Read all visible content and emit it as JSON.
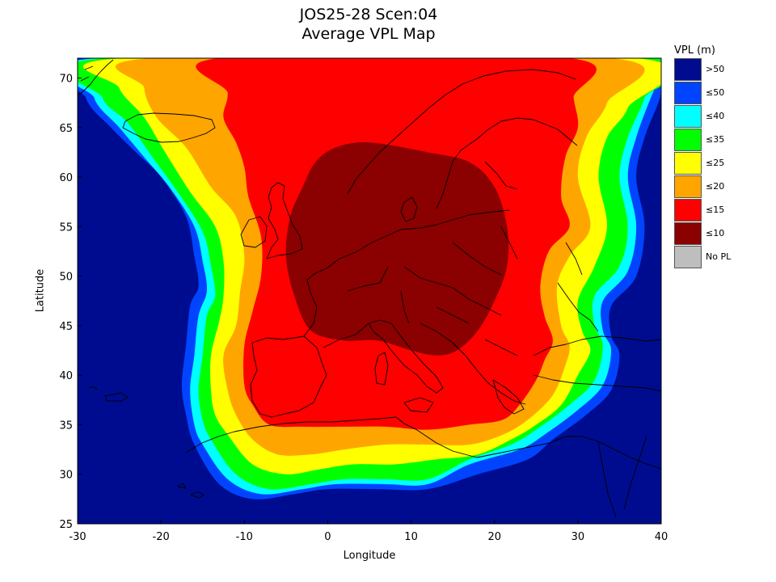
{
  "title_line1": "JOS25-28 Scen:04",
  "title_line2": "Average VPL Map",
  "xlabel": "Longitude",
  "ylabel": "Latitude",
  "x_range": [
    -30,
    40
  ],
  "y_range": [
    25,
    72
  ],
  "x_ticks": [
    -30,
    -20,
    -10,
    0,
    10,
    20,
    30,
    40
  ],
  "y_ticks": [
    25,
    30,
    35,
    40,
    45,
    50,
    55,
    60,
    65,
    70
  ],
  "legend": {
    "title": "VPL (m)",
    "items": [
      {
        "label": ">50",
        "color": "#000c8f"
      },
      {
        "label": "≤50",
        "color": "#0044ff"
      },
      {
        "label": "≤40",
        "color": "#00ffff"
      },
      {
        "label": "≤35",
        "color": "#00ff00"
      },
      {
        "label": "≤25",
        "color": "#ffff00"
      },
      {
        "label": "≤20",
        "color": "#ffa500"
      },
      {
        "label": "≤15",
        "color": "#ff0000"
      },
      {
        "label": "≤10",
        "color": "#8b0000"
      },
      {
        "label": "No PL",
        "color": "#bebebe"
      }
    ]
  },
  "map_layers": [
    {
      "name": "≤50",
      "color": "#0044ff",
      "ring": [
        [
          -28.5,
          72
        ],
        [
          -29,
          68
        ],
        [
          -26,
          65
        ],
        [
          -23,
          62.5
        ],
        [
          -20,
          60
        ],
        [
          -17,
          56
        ],
        [
          -16,
          52
        ],
        [
          -15.5,
          49
        ],
        [
          -16.5,
          47
        ],
        [
          -17,
          43
        ],
        [
          -17.5,
          39
        ],
        [
          -17,
          36
        ],
        [
          -16,
          33
        ],
        [
          -13,
          29
        ],
        [
          -9,
          27.5
        ],
        [
          -4,
          28
        ],
        [
          0,
          28.5
        ],
        [
          6,
          28.5
        ],
        [
          12,
          28.5
        ],
        [
          18,
          30
        ],
        [
          24,
          31.5
        ],
        [
          27,
          33.5
        ],
        [
          31,
          36
        ],
        [
          34,
          38.5
        ],
        [
          35,
          42
        ],
        [
          34,
          44
        ],
        [
          34,
          47
        ],
        [
          37,
          50
        ],
        [
          38,
          55
        ],
        [
          37,
          60
        ],
        [
          38,
          64
        ],
        [
          40,
          68.5
        ],
        [
          40,
          72
        ]
      ]
    },
    {
      "name": "≤40",
      "color": "#00ffff",
      "ring": [
        [
          -27.5,
          72
        ],
        [
          -28,
          68
        ],
        [
          -25,
          65
        ],
        [
          -22,
          62
        ],
        [
          -19,
          59
        ],
        [
          -16,
          55
        ],
        [
          -15,
          51.5
        ],
        [
          -14.5,
          48.5
        ],
        [
          -15.5,
          46
        ],
        [
          -16,
          42
        ],
        [
          -16.5,
          38.5
        ],
        [
          -16,
          35
        ],
        [
          -15,
          33
        ],
        [
          -12,
          29.5
        ],
        [
          -8,
          28
        ],
        [
          -3,
          28.5
        ],
        [
          1,
          29
        ],
        [
          7,
          29
        ],
        [
          12,
          29
        ],
        [
          17,
          31
        ],
        [
          23,
          32.5
        ],
        [
          26,
          34
        ],
        [
          30,
          36.5
        ],
        [
          33,
          39
        ],
        [
          34,
          42.5
        ],
        [
          33,
          44.5
        ],
        [
          33,
          47.5
        ],
        [
          36,
          50.5
        ],
        [
          37,
          55
        ],
        [
          36,
          60
        ],
        [
          37,
          64
        ],
        [
          39,
          68.5
        ],
        [
          40,
          70
        ],
        [
          40,
          72
        ]
      ]
    },
    {
      "name": "≤35",
      "color": "#00ff00",
      "ring": [
        [
          -26.5,
          72
        ],
        [
          -27,
          68
        ],
        [
          -24,
          65.5
        ],
        [
          -21,
          62
        ],
        [
          -18,
          58.5
        ],
        [
          -15,
          54.5
        ],
        [
          -14,
          51
        ],
        [
          -13.5,
          48
        ],
        [
          -14.5,
          46
        ],
        [
          -15,
          42
        ],
        [
          -15.5,
          38.5
        ],
        [
          -15,
          35.5
        ],
        [
          -14,
          33.5
        ],
        [
          -11,
          30
        ],
        [
          -7,
          28.5
        ],
        [
          -2,
          29
        ],
        [
          2,
          29.5
        ],
        [
          7,
          29.5
        ],
        [
          12,
          29.5
        ],
        [
          17,
          31.5
        ],
        [
          22,
          33
        ],
        [
          25,
          34.5
        ],
        [
          29,
          37
        ],
        [
          32,
          39.5
        ],
        [
          33,
          43
        ],
        [
          32,
          45
        ],
        [
          32,
          48
        ],
        [
          35,
          51
        ],
        [
          36,
          55
        ],
        [
          35,
          60
        ],
        [
          36,
          64
        ],
        [
          38,
          68
        ],
        [
          39,
          72
        ]
      ]
    },
    {
      "name": "≤25",
      "color": "#ffff00",
      "ring": [
        [
          -24.5,
          72
        ],
        [
          -25,
          69
        ],
        [
          -22,
          66
        ],
        [
          -19.5,
          62.5
        ],
        [
          -16.5,
          58.5
        ],
        [
          -13.5,
          55
        ],
        [
          -12.5,
          51.5
        ],
        [
          -12.5,
          48
        ],
        [
          -13,
          45.5
        ],
        [
          -14,
          42
        ],
        [
          -14,
          38.5
        ],
        [
          -13.5,
          36
        ],
        [
          -12,
          34
        ],
        [
          -9,
          31
        ],
        [
          -5,
          30
        ],
        [
          -1,
          30.5
        ],
        [
          3,
          31
        ],
        [
          8,
          31
        ],
        [
          13,
          31.5
        ],
        [
          18,
          32
        ],
        [
          22,
          33.5
        ],
        [
          25,
          35
        ],
        [
          28,
          37
        ],
        [
          30,
          40
        ],
        [
          31.5,
          42.5
        ],
        [
          30.5,
          44.5
        ],
        [
          30,
          47.5
        ],
        [
          32,
          51
        ],
        [
          33.5,
          55
        ],
        [
          32.5,
          60
        ],
        [
          33.5,
          64
        ],
        [
          36,
          67
        ],
        [
          37,
          72
        ]
      ]
    },
    {
      "name": "≤20",
      "color": "#ffa500",
      "ring": [
        [
          -21,
          72
        ],
        [
          -22,
          69
        ],
        [
          -20.5,
          66
        ],
        [
          -17,
          63
        ],
        [
          -14,
          59
        ],
        [
          -11,
          56
        ],
        [
          -10,
          52
        ],
        [
          -10.5,
          48.5
        ],
        [
          -11,
          45
        ],
        [
          -12.5,
          42
        ],
        [
          -12,
          38.5
        ],
        [
          -11,
          36
        ],
        [
          -9,
          33.5
        ],
        [
          -6,
          32
        ],
        [
          -2,
          32
        ],
        [
          2,
          32.5
        ],
        [
          7,
          33
        ],
        [
          12,
          33
        ],
        [
          17,
          33
        ],
        [
          21,
          34
        ],
        [
          24,
          35.5
        ],
        [
          27,
          38
        ],
        [
          28.5,
          41
        ],
        [
          29,
          43
        ],
        [
          28,
          45
        ],
        [
          27.5,
          49
        ],
        [
          29,
          52
        ],
        [
          31.5,
          55
        ],
        [
          30,
          60
        ],
        [
          31,
          64
        ],
        [
          33.5,
          67.5
        ],
        [
          34,
          72
        ]
      ]
    },
    {
      "name": "≤15",
      "color": "#ff0000",
      "ring": [
        [
          -13,
          72
        ],
        [
          -12,
          68.5
        ],
        [
          -12.5,
          66
        ],
        [
          -11,
          63.5
        ],
        [
          -10,
          61
        ],
        [
          -9.5,
          58
        ],
        [
          -8,
          54
        ],
        [
          -8,
          50
        ],
        [
          -9,
          46.5
        ],
        [
          -10,
          43
        ],
        [
          -10,
          39
        ],
        [
          -9,
          37
        ],
        [
          -7,
          35
        ],
        [
          -3,
          34.8
        ],
        [
          2,
          34.8
        ],
        [
          7,
          34.8
        ],
        [
          12,
          34.5
        ],
        [
          17,
          35
        ],
        [
          21,
          35.5
        ],
        [
          23,
          37
        ],
        [
          25,
          39.5
        ],
        [
          26,
          41.5
        ],
        [
          27,
          43.5
        ],
        [
          26,
          46
        ],
        [
          25.5,
          49
        ],
        [
          26.5,
          52.5
        ],
        [
          29,
          55
        ],
        [
          28,
          58
        ],
        [
          28.5,
          62
        ],
        [
          30,
          65
        ],
        [
          29.5,
          68
        ],
        [
          29,
          72
        ]
      ]
    },
    {
      "name": "≤10",
      "color": "#8b0000",
      "ring": [
        [
          -1.5,
          61.5
        ],
        [
          -3,
          59
        ],
        [
          -4.5,
          56
        ],
        [
          -5,
          52
        ],
        [
          -4,
          48
        ],
        [
          -2,
          44.5
        ],
        [
          2,
          43.5
        ],
        [
          6,
          43.5
        ],
        [
          10,
          42.5
        ],
        [
          13,
          42
        ],
        [
          15.5,
          42.5
        ],
        [
          18,
          44.5
        ],
        [
          20,
          47.5
        ],
        [
          21.5,
          51
        ],
        [
          21.5,
          55
        ],
        [
          20,
          59
        ],
        [
          17,
          61.5
        ],
        [
          12,
          62.5
        ],
        [
          5,
          63.5
        ],
        [
          1,
          63
        ]
      ]
    }
  ]
}
